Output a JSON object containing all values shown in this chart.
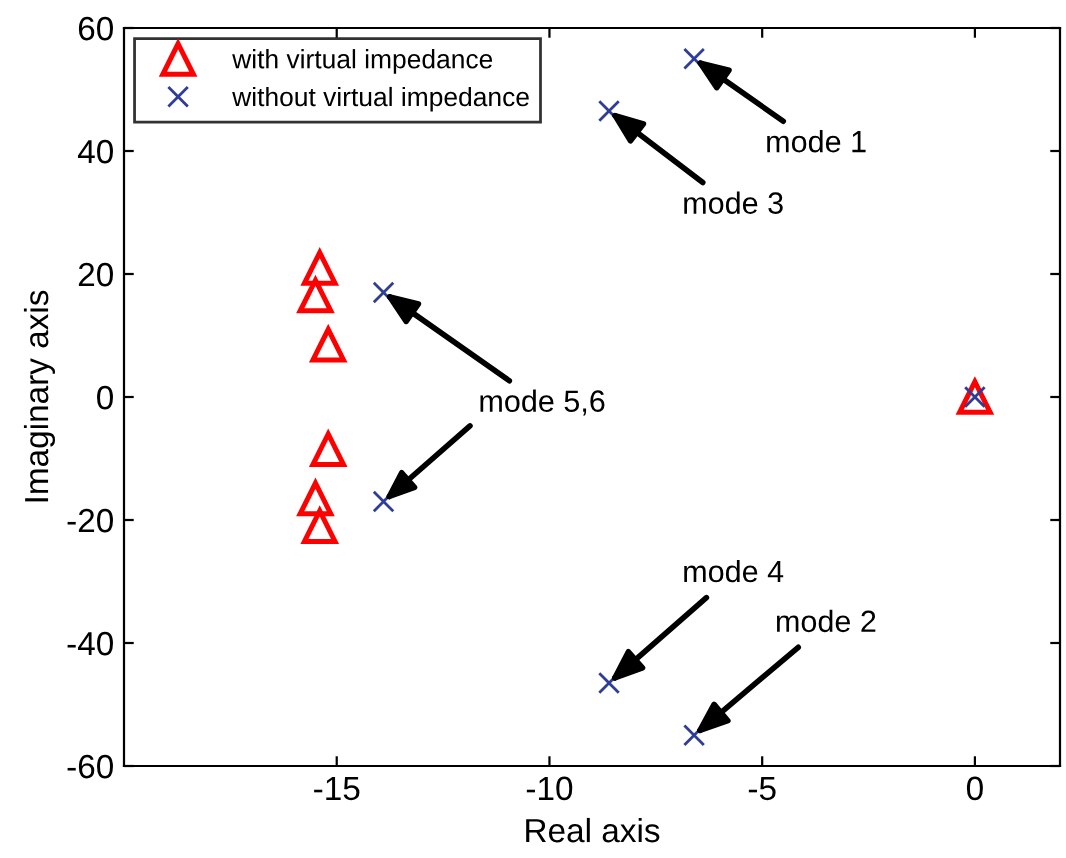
{
  "chart_data": {
    "type": "scatter",
    "xlabel": "Real axis",
    "ylabel": "Imaginary axis",
    "xlim": [
      -20,
      2
    ],
    "ylim": [
      -60,
      60
    ],
    "xticks": [
      -15,
      -10,
      -5,
      0
    ],
    "yticks": [
      -60,
      -40,
      -20,
      0,
      20,
      40,
      60
    ],
    "grid": false,
    "legend": "top left",
    "series": [
      {
        "name": "with virtual impedance",
        "color": "#ff0000",
        "marker": "triangle",
        "x": [
          -15.4,
          -15.5,
          -15.2,
          -15.2,
          -15.5,
          -15.4,
          0
        ],
        "values": [
          21,
          16.5,
          8.5,
          -8.5,
          -16.5,
          -21,
          0
        ]
      },
      {
        "name": "without virtual impedance",
        "color": "#2e3d98",
        "marker": "cross",
        "x": [
          -6.6,
          -8.6,
          -13.9,
          -13.9,
          -8.6,
          -6.6,
          0
        ],
        "values": [
          55,
          46.5,
          17,
          -17,
          -46.5,
          -55,
          0
        ]
      }
    ],
    "annotations": [
      {
        "text": "mode 1",
        "x": -6.6,
        "y": 55
      },
      {
        "text": "mode 3",
        "x": -8.6,
        "y": 46.5
      },
      {
        "text": "mode 5,6",
        "x": -13.9,
        "y": 17
      },
      {
        "text": "mode 4",
        "x": -8.6,
        "y": -46.5
      },
      {
        "text": "mode 2",
        "x": -6.6,
        "y": -55
      }
    ]
  }
}
